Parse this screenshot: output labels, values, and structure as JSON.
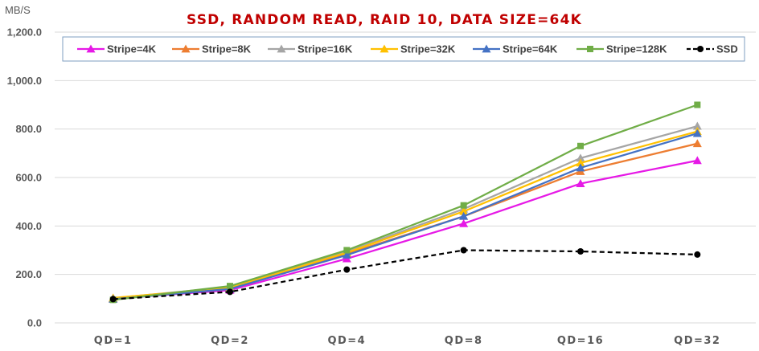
{
  "chart_data": {
    "type": "line",
    "title": "SSD, RANDOM READ, RAID 10, DATA SIZE=64K",
    "ylabel": "MB/S",
    "xlabel": "",
    "ylim": [
      0,
      1200
    ],
    "yticks": [
      0,
      200,
      400,
      600,
      800,
      1000,
      1200
    ],
    "ytick_labels": [
      "0.0",
      "200.0",
      "400.0",
      "600.0",
      "800.0",
      "1,000.0",
      "1,200.0"
    ],
    "categories": [
      "QD=1",
      "QD=2",
      "QD=4",
      "QD=8",
      "QD=16",
      "QD=32"
    ],
    "grid": true,
    "legend_position": "top",
    "series": [
      {
        "name": "Stripe=4K",
        "color": "#e619e6",
        "marker": "triangle",
        "dash": false,
        "values": [
          100,
          135,
          265,
          410,
          575,
          670
        ]
      },
      {
        "name": "Stripe=8K",
        "color": "#ed7d31",
        "marker": "triangle",
        "dash": false,
        "values": [
          100,
          140,
          285,
          440,
          625,
          740
        ]
      },
      {
        "name": "Stripe=16K",
        "color": "#a5a5a5",
        "marker": "triangle",
        "dash": false,
        "values": [
          102,
          148,
          295,
          470,
          680,
          812
        ]
      },
      {
        "name": "Stripe=32K",
        "color": "#ffc000",
        "marker": "triangle",
        "dash": false,
        "values": [
          103,
          145,
          290,
          460,
          660,
          790
        ]
      },
      {
        "name": "Stripe=64K",
        "color": "#4472c4",
        "marker": "triangle",
        "dash": false,
        "values": [
          98,
          140,
          280,
          440,
          640,
          782
        ]
      },
      {
        "name": "Stripe=128K",
        "color": "#70ad47",
        "marker": "square",
        "dash": false,
        "values": [
          95,
          152,
          300,
          485,
          730,
          900
        ]
      },
      {
        "name": "SSD",
        "color": "#000000",
        "marker": "circle",
        "dash": true,
        "values": [
          98,
          128,
          220,
          300,
          295,
          282
        ]
      }
    ]
  }
}
